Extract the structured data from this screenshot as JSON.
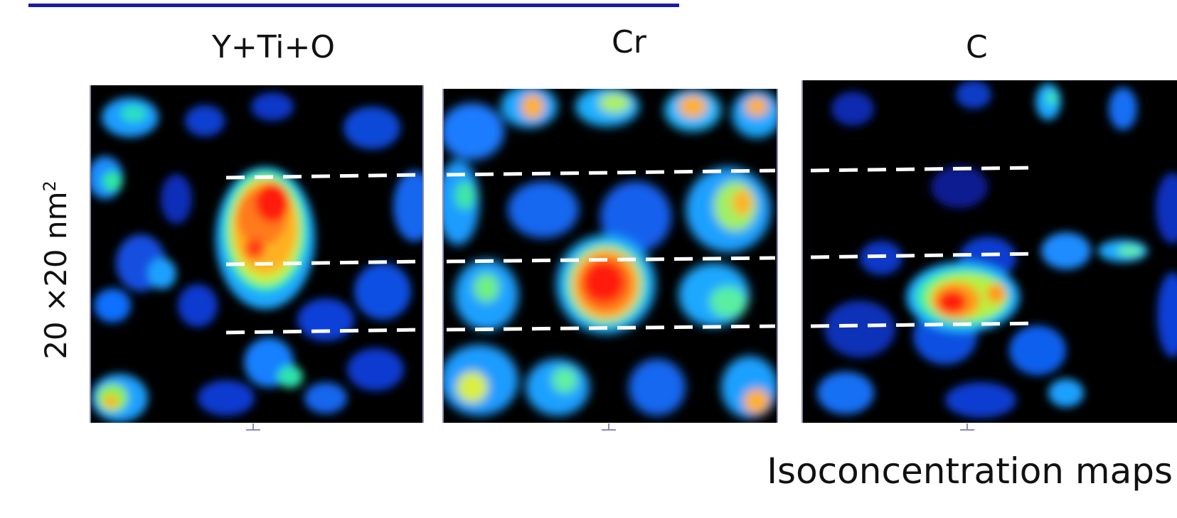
{
  "maps": [
    {
      "title": "Y+Ti+O"
    },
    {
      "title": "Cr"
    },
    {
      "title": "C"
    }
  ],
  "scale_label": "20 ×20 nm",
  "scale_label_sup": "2",
  "caption": "Isoconcentration maps"
}
